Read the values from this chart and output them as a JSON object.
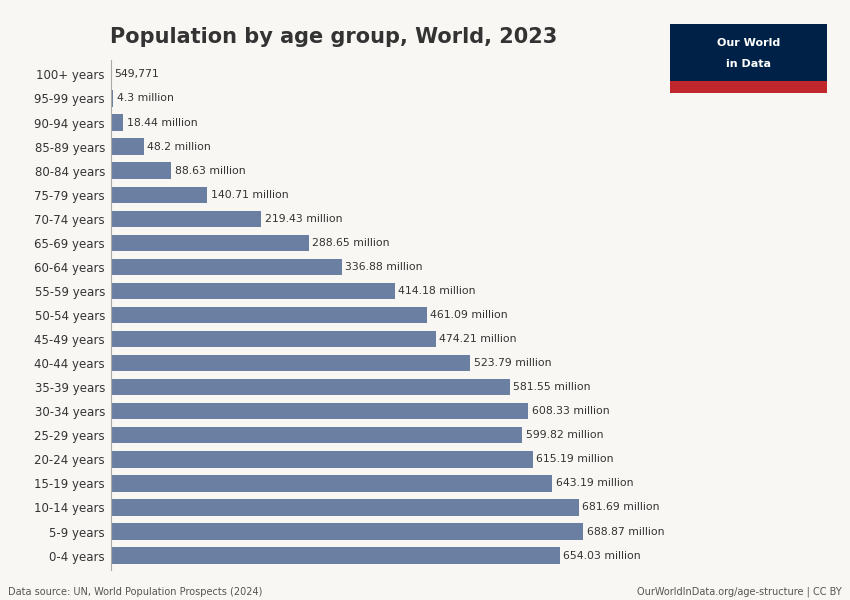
{
  "title": "Population by age group, World, 2023",
  "categories": [
    "100+ years",
    "95-99 years",
    "90-94 years",
    "85-89 years",
    "80-84 years",
    "75-79 years",
    "70-74 years",
    "65-69 years",
    "60-64 years",
    "55-59 years",
    "50-54 years",
    "45-49 years",
    "40-44 years",
    "35-39 years",
    "30-34 years",
    "25-29 years",
    "20-24 years",
    "15-19 years",
    "10-14 years",
    "5-9 years",
    "0-4 years"
  ],
  "values": [
    0.549771,
    4.3,
    18.44,
    48.2,
    88.63,
    140.71,
    219.43,
    288.65,
    336.88,
    414.18,
    461.09,
    474.21,
    523.79,
    581.55,
    608.33,
    599.82,
    615.19,
    643.19,
    681.69,
    688.87,
    654.03
  ],
  "labels": [
    "549,771",
    "4.3 million",
    "18.44 million",
    "48.2 million",
    "88.63 million",
    "140.71 million",
    "219.43 million",
    "288.65 million",
    "336.88 million",
    "414.18 million",
    "461.09 million",
    "474.21 million",
    "523.79 million",
    "581.55 million",
    "608.33 million",
    "599.82 million",
    "615.19 million",
    "643.19 million",
    "681.69 million",
    "688.87 million",
    "654.03 million"
  ],
  "bar_color": "#6b7fa3",
  "background_color": "#f9f7f4",
  "text_color": "#333333",
  "footer_left": "Data source: UN, World Population Prospects (2024)",
  "footer_right": "OurWorldInData.org/age-structure | CC BY",
  "logo_text1": "Our World",
  "logo_text2": "in Data",
  "logo_bg": "#002147",
  "logo_accent": "#c0272d",
  "xlim": 780
}
